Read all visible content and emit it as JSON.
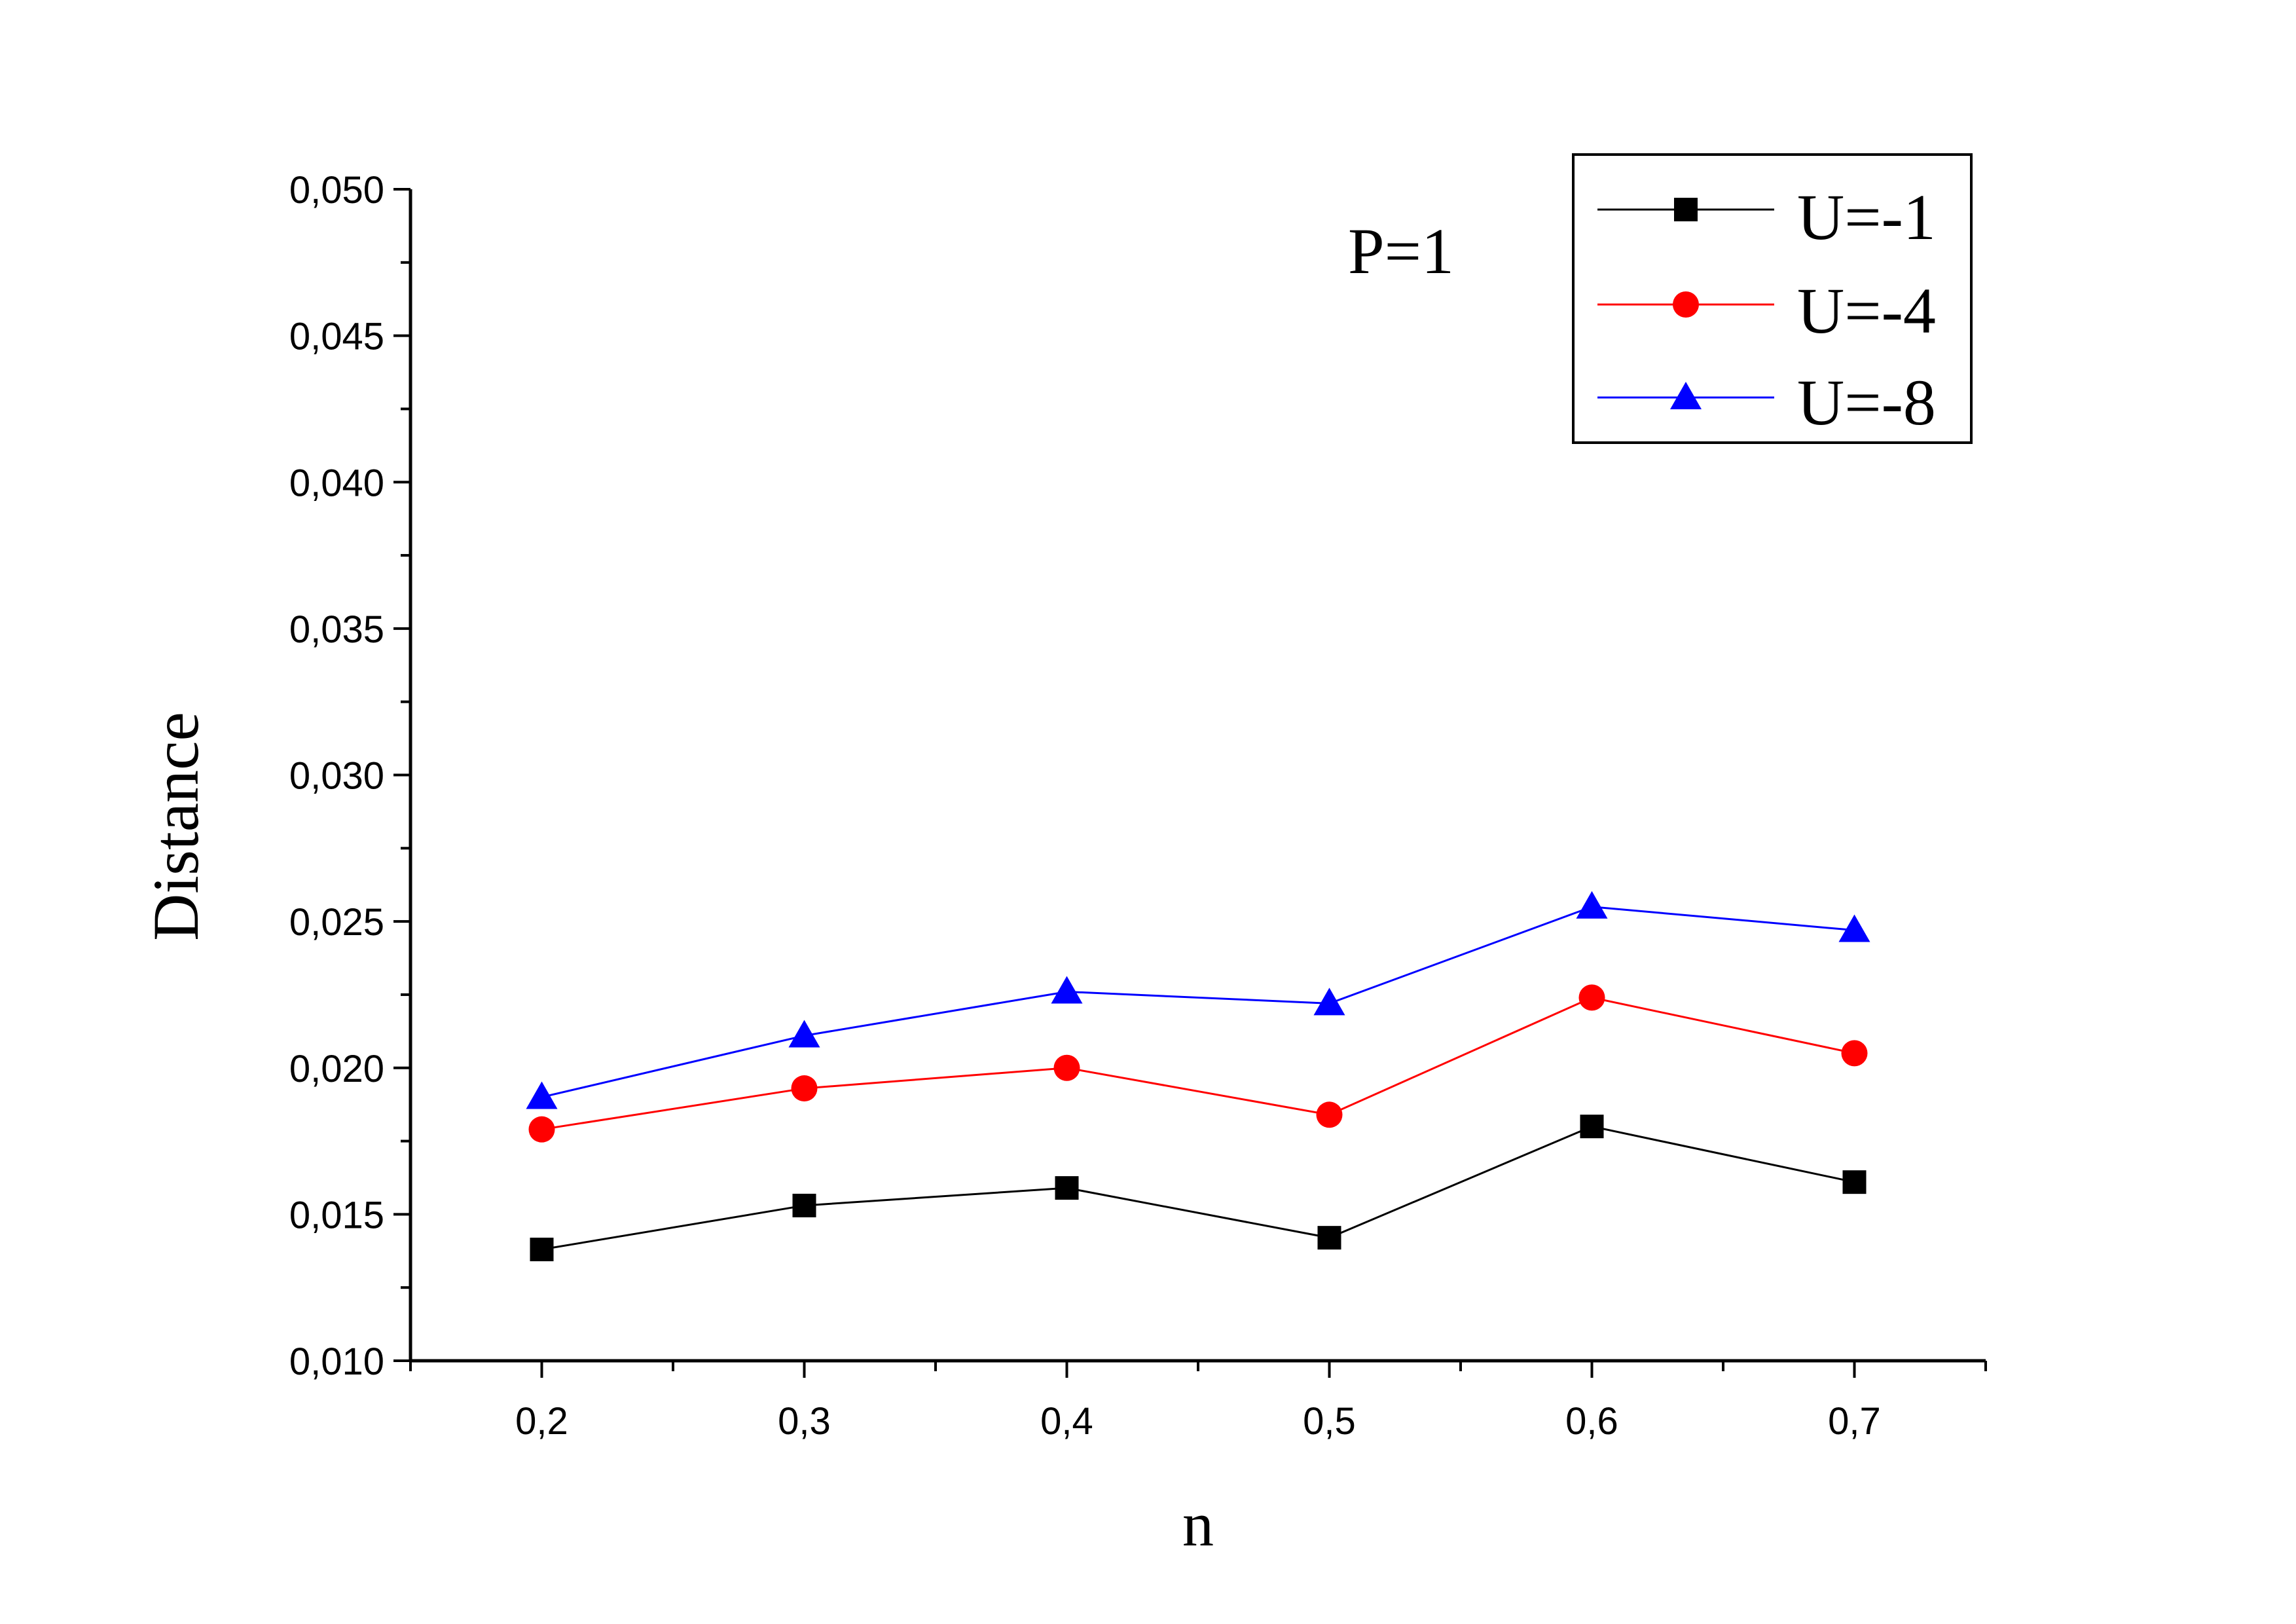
{
  "chart_data": {
    "type": "line",
    "title": "",
    "annotation": "P=1",
    "xlabel": "n",
    "ylabel": "Distance",
    "x": [
      0.2,
      0.3,
      0.4,
      0.5,
      0.6,
      0.7
    ],
    "x_tick_labels": [
      "0,2",
      "0,3",
      "0,4",
      "0,5",
      "0,6",
      "0,7"
    ],
    "y_tick_values": [
      0.01,
      0.015,
      0.02,
      0.025,
      0.03,
      0.035,
      0.04,
      0.045,
      0.05
    ],
    "y_tick_labels": [
      "0,010",
      "0,015",
      "0,020",
      "0,025",
      "0,030",
      "0,035",
      "0,040",
      "0,045",
      "0,050"
    ],
    "xlim": [
      0.15,
      0.75
    ],
    "ylim": [
      0.01,
      0.05
    ],
    "grid": false,
    "legend_position": "top-right",
    "series": [
      {
        "name": "U=-1",
        "color": "#000000",
        "marker": "square",
        "values": [
          0.0138,
          0.0153,
          0.0159,
          0.0142,
          0.018,
          0.0161
        ]
      },
      {
        "name": "U=-4",
        "color": "#ff0000",
        "marker": "circle",
        "values": [
          0.0179,
          0.0193,
          0.02,
          0.0184,
          0.0224,
          0.0205
        ]
      },
      {
        "name": "U=-8",
        "color": "#0000ff",
        "marker": "triangle",
        "values": [
          0.019,
          0.0211,
          0.0226,
          0.0222,
          0.0255,
          0.0247
        ]
      }
    ]
  }
}
